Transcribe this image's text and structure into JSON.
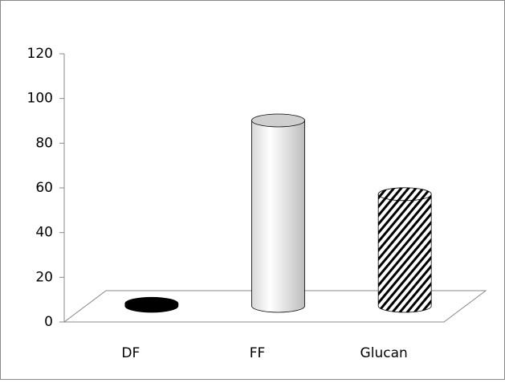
{
  "chart_data": {
    "type": "bar3d",
    "categories": [
      "DF",
      "FF",
      "Glucan"
    ],
    "values": [
      1,
      83,
      50
    ],
    "fills": [
      "solid",
      "shaded",
      "hatched"
    ],
    "colors": [
      "#000000",
      "#ffffff",
      "#ffffff"
    ],
    "ylim": [
      0,
      120
    ],
    "yticks": [
      0,
      20,
      40,
      60,
      80,
      100,
      120
    ]
  }
}
